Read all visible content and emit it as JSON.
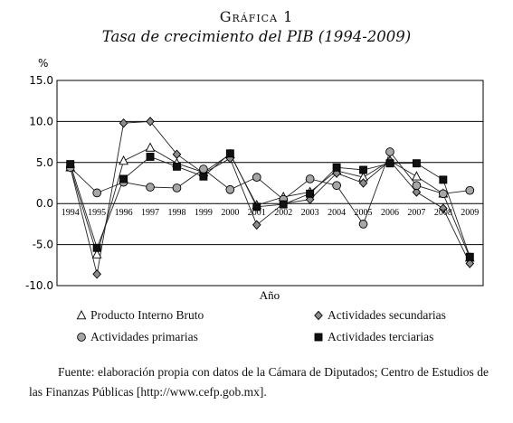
{
  "header": {
    "label": "Gráfica 1",
    "title": "Tasa de crecimiento del PIB (1994-2009)"
  },
  "chart_data": {
    "type": "line",
    "ylabel": "%",
    "xlabel": "Año",
    "ylim": [
      -10,
      15
    ],
    "yticks": [
      "15.0",
      "10.0",
      "5.0",
      "0.0",
      "-5.0",
      "-10.0"
    ],
    "yticks_values": [
      15,
      10,
      5,
      0,
      -5,
      -10
    ],
    "grid": "horizontal",
    "legend_position": "bottom",
    "categories": [
      "1994",
      "1995",
      "1996",
      "1997",
      "1998",
      "1999",
      "2000",
      "2001",
      "2002",
      "2003",
      "2004",
      "2005",
      "2006",
      "2007",
      "2008",
      "2009"
    ],
    "series": [
      {
        "name": "Producto Interno Bruto",
        "marker": "triangle",
        "color": "#ffffff",
        "values": [
          4.4,
          -6.2,
          5.2,
          6.8,
          4.9,
          3.8,
          6.0,
          -0.2,
          0.8,
          1.4,
          4.0,
          3.2,
          5.2,
          3.3,
          1.2,
          -6.6
        ]
      },
      {
        "name": "Actividades secundarias",
        "marker": "diamond",
        "color": "#8c8c8c",
        "values": [
          4.4,
          -8.6,
          9.8,
          10.0,
          6.0,
          3.7,
          5.5,
          -2.6,
          0.0,
          0.5,
          3.7,
          2.5,
          5.2,
          1.4,
          -0.6,
          -7.3
        ]
      },
      {
        "name": "Actividades primarias",
        "marker": "circle",
        "color": "#a6a6a6",
        "values": [
          4.4,
          1.3,
          2.6,
          2.0,
          1.9,
          4.2,
          1.7,
          3.2,
          0.5,
          3.0,
          2.2,
          -2.5,
          6.3,
          2.2,
          1.2,
          1.6
        ]
      },
      {
        "name": "Actividades terciarias",
        "marker": "square",
        "color": "#111111",
        "values": [
          4.8,
          -5.4,
          3.0,
          5.7,
          4.5,
          3.3,
          6.1,
          -0.4,
          -0.1,
          1.2,
          4.4,
          4.1,
          4.9,
          4.9,
          2.9,
          -6.5
        ]
      }
    ]
  },
  "source": {
    "text": "Fuente: elaboración propia con datos de la Cámara de Diputados; Centro de Estudios de las Finanzas Públicas [http://www.cefp.gob.mx]."
  }
}
